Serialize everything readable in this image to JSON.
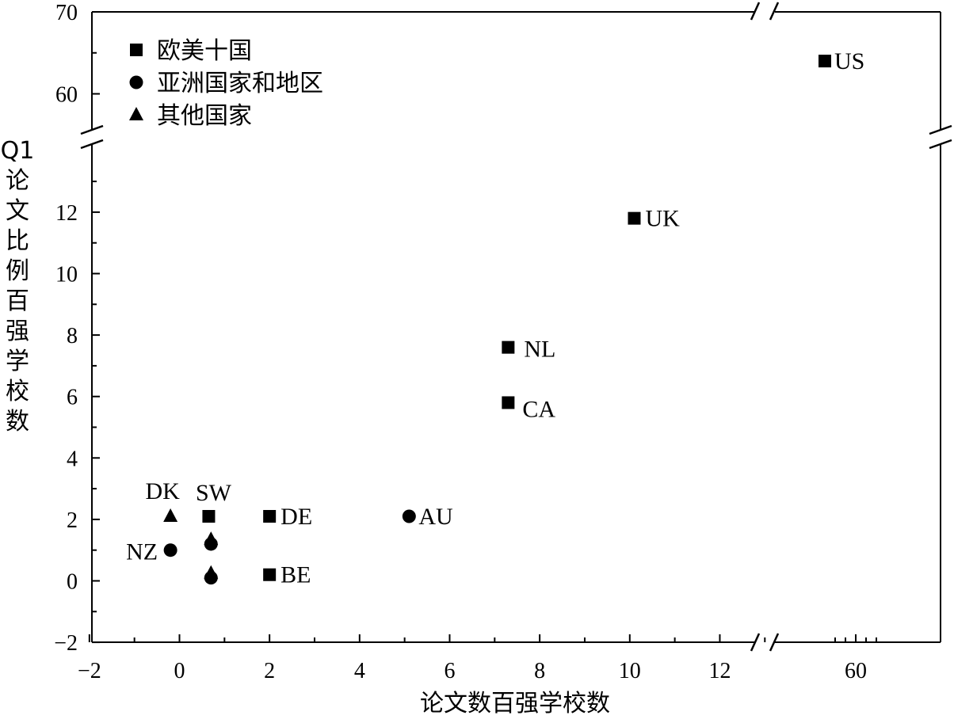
{
  "chart_data": {
    "type": "scatter",
    "title": "",
    "xlabel": "论文数百强学校数",
    "ylabel": "Q1论文比例百强学校数",
    "x_axis": {
      "broken": true,
      "lower_range": [
        -2,
        13
      ],
      "upper_range_ticks": [
        60
      ],
      "tick_labels": [
        "−2",
        "0",
        "2",
        "4",
        "6",
        "8",
        "10",
        "12",
        "60"
      ]
    },
    "y_axis": {
      "broken": true,
      "lower_range": [
        -2,
        14
      ],
      "upper_range": [
        56,
        70
      ],
      "tick_labels": [
        "−2",
        "0",
        "2",
        "4",
        "6",
        "8",
        "10",
        "12",
        "60",
        "70"
      ]
    },
    "legend": {
      "position": "top-left",
      "entries": [
        {
          "marker": "square",
          "label": "欧美十国"
        },
        {
          "marker": "circle",
          "label": "亚洲国家和地区"
        },
        {
          "marker": "triangle",
          "label": "其他国家"
        }
      ]
    },
    "points": [
      {
        "label": "US",
        "x": 57,
        "y": 64,
        "marker": "square"
      },
      {
        "label": "UK",
        "x": 10.1,
        "y": 11.8,
        "marker": "square"
      },
      {
        "label": "NL",
        "x": 7.3,
        "y": 7.6,
        "marker": "square"
      },
      {
        "label": "CA",
        "x": 7.3,
        "y": 5.8,
        "marker": "square"
      },
      {
        "label": "DE",
        "x": 2.0,
        "y": 2.1,
        "marker": "square"
      },
      {
        "label": "SW",
        "x": 0.65,
        "y": 2.1,
        "marker": "square"
      },
      {
        "label": "BE",
        "x": 2.0,
        "y": 0.2,
        "marker": "square"
      },
      {
        "label": "AU",
        "x": 5.1,
        "y": 2.1,
        "marker": "circle"
      },
      {
        "label": "NZ",
        "x": -0.2,
        "y": 1.0,
        "marker": "circle"
      },
      {
        "label": "DK",
        "x": -0.2,
        "y": 2.1,
        "marker": "triangle"
      },
      {
        "label": "",
        "x": 0.7,
        "y": 1.2,
        "marker": "circle"
      },
      {
        "label": "",
        "x": 0.7,
        "y": 1.35,
        "marker": "triangle"
      },
      {
        "label": "",
        "x": 0.7,
        "y": 0.1,
        "marker": "circle"
      },
      {
        "label": "",
        "x": 0.7,
        "y": 0.25,
        "marker": "triangle"
      }
    ]
  }
}
